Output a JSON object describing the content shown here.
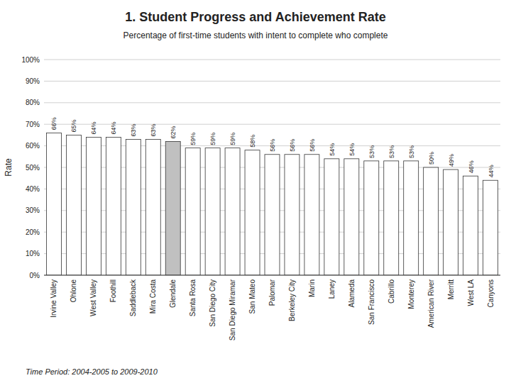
{
  "chart_data": {
    "type": "bar",
    "title": "1. Student Progress and Achievement Rate",
    "subtitle": "Percentage of first-time students with intent to complete who complete",
    "ylabel": "Rate",
    "footer": "Time Period: 2004-2005 to 2009-2010",
    "categories": [
      "Irvine Valley",
      "Ohlone",
      "West Valley",
      "Foothill",
      "Saddleback",
      "Mira Costa",
      "Glendale",
      "Santa Rosa",
      "San Diego City",
      "San Diego Miramar",
      "San Mateo",
      "Palomar",
      "Berkeley City",
      "Marin",
      "Laney",
      "Alameda",
      "San Francisco",
      "Cabrillo",
      "Monterey",
      "American River",
      "Merritt",
      "West LA",
      "Canyons"
    ],
    "values": [
      66,
      65,
      64,
      64,
      63,
      63,
      62,
      59,
      59,
      59,
      58,
      56,
      56,
      56,
      54,
      54,
      53,
      53,
      53,
      50,
      49,
      46,
      44
    ],
    "value_labels": [
      "66%",
      "65%",
      "64%",
      "64%",
      "63%",
      "63%",
      "62%",
      "59%",
      "59%",
      "59%",
      "58%",
      "56%",
      "56%",
      "56%",
      "54%",
      "54%",
      "53%",
      "53%",
      "53%",
      "50%",
      "49%",
      "46%",
      "44%"
    ],
    "colors": [
      "#ffffff",
      "#ffffff",
      "#ffffff",
      "#ffffff",
      "#ffffff",
      "#ffffff",
      "#c0c0c0",
      "#ffffff",
      "#ffffff",
      "#ffffff",
      "#ffffff",
      "#ffffff",
      "#ffffff",
      "#ffffff",
      "#ffffff",
      "#ffffff",
      "#ffffff",
      "#ffffff",
      "#ffffff",
      "#ffffff",
      "#ffffff",
      "#ffffff",
      "#ffffff"
    ],
    "ylim": [
      0,
      100
    ],
    "yticks": [
      {
        "value": 0,
        "label": "0%"
      },
      {
        "value": 10,
        "label": "10%"
      },
      {
        "value": 20,
        "label": "20%"
      },
      {
        "value": 30,
        "label": "30%"
      },
      {
        "value": 40,
        "label": "40%"
      },
      {
        "value": 50,
        "label": "50%"
      },
      {
        "value": 60,
        "label": "60%"
      },
      {
        "value": 70,
        "label": "70%"
      },
      {
        "value": 80,
        "label": "80%"
      },
      {
        "value": 90,
        "label": "90%"
      },
      {
        "value": 100,
        "label": "100%"
      }
    ],
    "grid": true,
    "data_labels": true
  }
}
